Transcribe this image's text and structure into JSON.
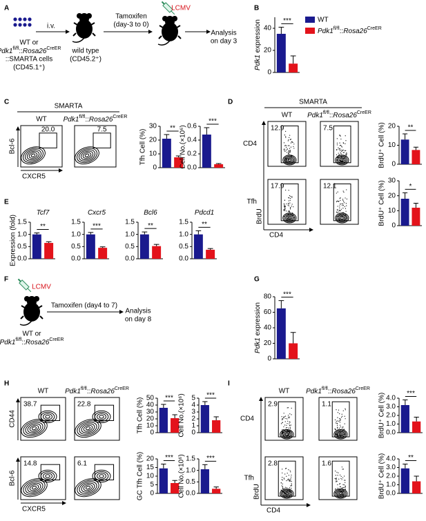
{
  "panel_labels": [
    "A",
    "B",
    "C",
    "D",
    "E",
    "F",
    "G",
    "H",
    "I"
  ],
  "schematic_A": {
    "route": "i.v.",
    "donor": [
      "WT or",
      [
        {
          "text": "Pdk1",
          "style": "italic"
        },
        {
          "text": "fl/fl",
          "style": "sup"
        },
        {
          "text": "::"
        },
        {
          "text": "Rosa26",
          "style": "italic"
        },
        {
          "text": "CreER",
          "style": "sup"
        }
      ],
      "::SMARTA cells",
      "(CD45.1⁺)"
    ],
    "recipient": [
      "wild type",
      "(CD45.2⁺)"
    ],
    "treatment": [
      "Tamoxifen",
      "(day-3 to 0)"
    ],
    "infection": "LCMV",
    "readout": [
      "Analysis",
      "on day 3"
    ]
  },
  "schematic_F": {
    "infection": "LCMV",
    "treatment": "Tamoxifen (day4 to 7)",
    "readout": [
      "Analysis",
      "on day 8"
    ],
    "mice": [
      "WT or",
      [
        {
          "text": "Pdk1",
          "style": "italic"
        },
        {
          "text": "fl/fl",
          "style": "sup"
        },
        {
          "text": "::"
        },
        {
          "text": "Rosa26",
          "style": "italic"
        },
        {
          "text": "CreER",
          "style": "sup"
        }
      ]
    ]
  },
  "legend": [
    {
      "name": "WT",
      "color": "#1a1a8e"
    },
    {
      "name": [
        {
          "text": "Pdk1",
          "style": "italic"
        },
        {
          "text": "fl/fl",
          "style": "sup"
        },
        {
          "text": "::"
        },
        {
          "text": "Rosa26",
          "style": "italic"
        },
        {
          "text": "CreER",
          "style": "sup"
        }
      ],
      "color": "#e3131b"
    }
  ],
  "flow_C": {
    "header": "SMARTA",
    "columns": [
      "WT",
      [
        {
          "text": "Pdk1",
          "style": "italic"
        },
        {
          "text": "fl/fl",
          "style": "sup"
        },
        {
          "text": "::"
        },
        {
          "text": "Rosa26",
          "style": "italic"
        },
        {
          "text": "CreER",
          "style": "sup"
        }
      ]
    ],
    "gates": [
      [
        "20.0",
        "7.5"
      ]
    ],
    "y_labels": [
      "Bcl-6"
    ],
    "x_label": "CXCR5"
  },
  "flow_D": {
    "header": "SMARTA",
    "columns": [
      "WT",
      [
        {
          "text": "Pdk1",
          "style": "italic"
        },
        {
          "text": "fl/fl",
          "style": "sup"
        },
        {
          "text": "::"
        },
        {
          "text": "Rosa26",
          "style": "italic"
        },
        {
          "text": "CreER",
          "style": "sup"
        }
      ]
    ],
    "rows": [
      "CD4",
      "Tfh"
    ],
    "gates": [
      [
        "12.9",
        "7.5"
      ],
      [
        "17.9",
        "12.1"
      ]
    ],
    "y_label": "BrdU",
    "x_label": "CD4"
  },
  "flow_H": {
    "columns": [
      "WT",
      [
        {
          "text": "Pdk1",
          "style": "italic"
        },
        {
          "text": "fl/fl",
          "style": "sup"
        },
        {
          "text": "::"
        },
        {
          "text": "Rosa26",
          "style": "italic"
        },
        {
          "text": "CreER",
          "style": "sup"
        }
      ]
    ],
    "gates": [
      [
        "38.7",
        "22.8"
      ],
      [
        "14.8",
        "6.1"
      ]
    ],
    "y_labels": [
      "CD44",
      "Bcl-6"
    ],
    "x_label": "CXCR5"
  },
  "flow_I": {
    "columns": [
      "WT",
      [
        {
          "text": "Pdk1",
          "style": "italic"
        },
        {
          "text": "fl/fl",
          "style": "sup"
        },
        {
          "text": "::"
        },
        {
          "text": "Rosa26",
          "style": "italic"
        },
        {
          "text": "CreER",
          "style": "sup"
        }
      ]
    ],
    "rows": [
      "CD4",
      "Tfh"
    ],
    "gates": [
      [
        "2.9",
        "1.1"
      ],
      [
        "2.8",
        "1.6"
      ]
    ],
    "y_label": "BrdU",
    "x_label": "CD4"
  },
  "chart_data": [
    {
      "type": "bar",
      "ylabel": [
        {
          "text": "Pdk1",
          "style": "italic"
        },
        {
          "text": " expression"
        }
      ],
      "ylim": [
        0,
        50
      ],
      "yticks": [
        0,
        20,
        40
      ],
      "values": [
        35,
        8
      ],
      "errors": [
        6,
        7
      ],
      "colors": [
        "#1a1a8e",
        "#e3131b"
      ],
      "annotation": "***"
    },
    {
      "type": "bar",
      "ylabel": "Tfh Cell (%)",
      "ylim": [
        0,
        30
      ],
      "yticks": [
        0,
        10,
        20,
        30
      ],
      "values": [
        21,
        7.5
      ],
      "errors": [
        3,
        1
      ],
      "colors": [
        "#1a1a8e",
        "#e3131b"
      ],
      "annotation": "**"
    },
    {
      "type": "bar",
      "ylabel": "Cell No.(×10⁶)",
      "ylim": [
        0,
        0.6
      ],
      "yticks": [
        {
          "value": 0,
          "label": "0.0"
        },
        0.2,
        0.4,
        0.6
      ],
      "values": [
        0.48,
        0.05
      ],
      "errors": [
        0.1,
        0.01
      ],
      "colors": [
        "#1a1a8e",
        "#e3131b"
      ],
      "annotation": "***"
    },
    {
      "type": "bar",
      "ylabel": "BrdU⁺ Cell (%)",
      "ylim": [
        0,
        20
      ],
      "yticks": [
        0,
        10,
        20
      ],
      "values": [
        13,
        7.5
      ],
      "errors": [
        3,
        1.5
      ],
      "colors": [
        "#1a1a8e",
        "#e3131b"
      ],
      "annotation": "**"
    },
    {
      "type": "bar",
      "ylabel": "BrdU⁺ Cell (%)",
      "ylim": [
        0,
        30
      ],
      "yticks": [
        0,
        10,
        20,
        30
      ],
      "values": [
        18,
        12
      ],
      "errors": [
        4,
        3
      ],
      "colors": [
        "#1a1a8e",
        "#e3131b"
      ],
      "annotation": "*"
    },
    {
      "type": "bar",
      "title": [
        {
          "text": "Tcf7",
          "style": "italic"
        }
      ],
      "ylabel": "Expression (fold)",
      "ylim": [
        0,
        1.5
      ],
      "yticks": [
        {
          "value": 0,
          "label": "0.0"
        },
        0.5,
        {
          "value": 1,
          "label": "1.0"
        },
        1.5
      ],
      "values": [
        1.0,
        0.65
      ],
      "errors": [
        0.06,
        0.05
      ],
      "colors": [
        "#1a1a8e",
        "#e3131b"
      ],
      "annotation": "**"
    },
    {
      "type": "bar",
      "title": [
        {
          "text": "Cxcr5",
          "style": "italic"
        }
      ],
      "ylim": [
        0,
        1.5
      ],
      "yticks": [
        {
          "value": 0,
          "label": "0.0"
        },
        0.5,
        {
          "value": 1,
          "label": "1.0"
        },
        1.5
      ],
      "values": [
        1.0,
        0.45
      ],
      "errors": [
        0.08,
        0.04
      ],
      "colors": [
        "#1a1a8e",
        "#e3131b"
      ],
      "annotation": "***"
    },
    {
      "type": "bar",
      "title": [
        {
          "text": "Bcl6",
          "style": "italic"
        }
      ],
      "ylim": [
        0,
        1.5
      ],
      "yticks": [
        {
          "value": 0,
          "label": "0.0"
        },
        0.5,
        {
          "value": 1,
          "label": "1.0"
        },
        1.5
      ],
      "values": [
        1.0,
        0.52
      ],
      "errors": [
        0.1,
        0.07
      ],
      "colors": [
        "#1a1a8e",
        "#e3131b"
      ],
      "annotation": "**"
    },
    {
      "type": "bar",
      "title": [
        {
          "text": "Pdcd1",
          "style": "italic"
        }
      ],
      "ylim": [
        0,
        1.5
      ],
      "yticks": [
        {
          "value": 0,
          "label": "0.0"
        },
        0.5,
        {
          "value": 1,
          "label": "1.0"
        },
        1.5
      ],
      "values": [
        1.0,
        0.37
      ],
      "errors": [
        0.15,
        0.05
      ],
      "colors": [
        "#1a1a8e",
        "#e3131b"
      ],
      "annotation": "**"
    },
    {
      "type": "bar",
      "ylabel": [
        {
          "text": "Pdk1",
          "style": "italic"
        },
        {
          "text": " expression"
        }
      ],
      "ylim": [
        0,
        80
      ],
      "yticks": [
        0,
        20,
        40,
        60,
        80
      ],
      "values": [
        65,
        20
      ],
      "errors": [
        10,
        14
      ],
      "colors": [
        "#1a1a8e",
        "#e3131b"
      ],
      "annotation": "***"
    },
    {
      "type": "bar",
      "ylabel": "Tfh Cell (%)",
      "ylim": [
        0,
        50
      ],
      "yticks": [
        0,
        10,
        20,
        30,
        40,
        50
      ],
      "values": [
        36,
        21
      ],
      "errors": [
        5,
        5
      ],
      "colors": [
        "#1a1a8e",
        "#e3131b"
      ],
      "annotation": "***"
    },
    {
      "type": "bar",
      "ylabel": "Cell No.(×10⁶)",
      "ylim": [
        0,
        5
      ],
      "yticks": [
        0,
        1,
        2,
        3,
        4,
        5
      ],
      "values": [
        4.0,
        1.8
      ],
      "errors": [
        0.5,
        0.5
      ],
      "colors": [
        "#1a1a8e",
        "#e3131b"
      ],
      "annotation": "***"
    },
    {
      "type": "bar",
      "ylabel": "GC Tfh Cell (%)",
      "ylim": [
        0,
        20
      ],
      "yticks": [
        0,
        5,
        10,
        15,
        20
      ],
      "values": [
        14.5,
        6
      ],
      "errors": [
        2.5,
        1.5
      ],
      "colors": [
        "#1a1a8e",
        "#e3131b"
      ],
      "annotation": "***"
    },
    {
      "type": "bar",
      "ylabel": "Cell No.(×10⁶)",
      "ylim": [
        0,
        1.5
      ],
      "yticks": [
        {
          "value": 0,
          "label": "0.0"
        },
        0.5,
        {
          "value": 1,
          "label": "1.0"
        },
        1.5
      ],
      "values": [
        1.05,
        0.2
      ],
      "errors": [
        0.2,
        0.08
      ],
      "colors": [
        "#1a1a8e",
        "#e3131b"
      ],
      "annotation": "***"
    },
    {
      "type": "bar",
      "ylabel": "BrdU⁺ Cell (%)",
      "ylim": [
        0,
        4
      ],
      "yticks": [
        {
          "value": 0,
          "label": "0.0"
        },
        {
          "value": 1,
          "label": "1.0"
        },
        {
          "value": 2,
          "label": "2.0"
        },
        {
          "value": 3,
          "label": "3.0"
        },
        {
          "value": 4,
          "label": "4.0"
        }
      ],
      "values": [
        3.2,
        1.3
      ],
      "errors": [
        0.6,
        0.5
      ],
      "colors": [
        "#1a1a8e",
        "#e3131b"
      ],
      "annotation": "***"
    },
    {
      "type": "bar",
      "ylabel": "BrdU⁺ Cell (%)",
      "ylim": [
        0,
        4
      ],
      "yticks": [
        {
          "value": 0,
          "label": "0.0"
        },
        {
          "value": 1,
          "label": "1.0"
        },
        {
          "value": 2,
          "label": "2.0"
        },
        {
          "value": 3,
          "label": "3.0"
        },
        {
          "value": 4,
          "label": "4.0"
        }
      ],
      "values": [
        2.9,
        1.4
      ],
      "errors": [
        0.5,
        0.6
      ],
      "colors": [
        "#1a1a8e",
        "#e3131b"
      ],
      "annotation": "**"
    }
  ]
}
